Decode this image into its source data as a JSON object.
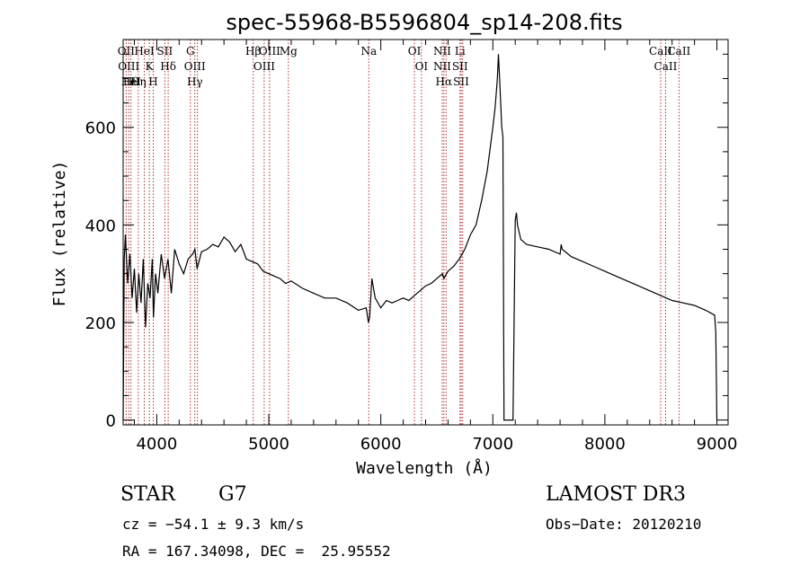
{
  "chart_data": {
    "type": "line",
    "title": "spec-55968-B5596804_sp14-208.fits",
    "xlabel": "Wavelength (Å)",
    "ylabel": "Flux (relative)",
    "xlim": [
      3700,
      9100
    ],
    "ylim": [
      -10,
      780
    ],
    "xticks": [
      4000,
      5000,
      6000,
      7000,
      8000,
      9000
    ],
    "xtick_labels": [
      "4000",
      "5000",
      "6000",
      "7000",
      "8000",
      "9000"
    ],
    "yticks": [
      0,
      200,
      400,
      600
    ],
    "ytick_labels": [
      "0",
      "200",
      "400",
      "600"
    ],
    "series": [
      {
        "name": "flux",
        "x": [
          3700,
          3710,
          3720,
          3740,
          3760,
          3780,
          3800,
          3820,
          3840,
          3860,
          3880,
          3900,
          3920,
          3940,
          3960,
          3970,
          3990,
          4010,
          4040,
          4070,
          4100,
          4130,
          4160,
          4200,
          4240,
          4280,
          4320,
          4340,
          4360,
          4400,
          4450,
          4500,
          4550,
          4600,
          4650,
          4700,
          4750,
          4800,
          4850,
          4900,
          4950,
          5000,
          5050,
          5100,
          5150,
          5200,
          5300,
          5400,
          5500,
          5600,
          5700,
          5800,
          5870,
          5890,
          5900,
          5920,
          5950,
          6000,
          6050,
          6100,
          6150,
          6200,
          6250,
          6300,
          6350,
          6400,
          6450,
          6500,
          6550,
          6563,
          6600,
          6650,
          6700,
          6750,
          6800,
          6850,
          6900,
          6950,
          7000,
          7020,
          7040,
          7050,
          7060,
          7070,
          7080,
          7090,
          7100,
          7150,
          7180,
          7200,
          7210,
          7220,
          7250,
          7300,
          7400,
          7500,
          7600,
          7610,
          7620,
          7700,
          7800,
          7900,
          8000,
          8100,
          8200,
          8300,
          8400,
          8500,
          8600,
          8700,
          8800,
          8900,
          8980,
          8990,
          9000
        ],
        "values": [
          0,
          330,
          380,
          280,
          340,
          250,
          310,
          220,
          300,
          240,
          330,
          190,
          280,
          250,
          330,
          210,
          300,
          260,
          340,
          290,
          330,
          260,
          350,
          320,
          300,
          330,
          340,
          350,
          310,
          345,
          350,
          360,
          355,
          375,
          365,
          345,
          360,
          330,
          325,
          320,
          305,
          300,
          295,
          290,
          280,
          285,
          270,
          260,
          250,
          250,
          240,
          225,
          230,
          200,
          210,
          290,
          250,
          230,
          245,
          240,
          245,
          250,
          245,
          255,
          265,
          275,
          280,
          290,
          300,
          290,
          305,
          315,
          330,
          350,
          380,
          400,
          450,
          510,
          600,
          640,
          700,
          750,
          700,
          650,
          600,
          580,
          0,
          0,
          0,
          410,
          425,
          400,
          370,
          360,
          355,
          350,
          340,
          360,
          350,
          335,
          325,
          315,
          305,
          295,
          285,
          275,
          265,
          255,
          245,
          240,
          235,
          225,
          215,
          180,
          0
        ]
      }
    ],
    "spectral_lines": [
      {
        "wavelength": 3727,
        "labels": [
          "OII"
        ]
      },
      {
        "wavelength": 3750,
        "labels": [
          "OIII"
        ]
      },
      {
        "wavelength": 3770,
        "labels": [
          "Hθ",
          "HeI"
        ]
      },
      {
        "wavelength": 3835,
        "labels": [
          "Hη"
        ]
      },
      {
        "wavelength": 3889,
        "labels": [
          "HeI"
        ]
      },
      {
        "wavelength": 3934,
        "labels": [
          "K"
        ]
      },
      {
        "wavelength": 3969,
        "labels": [
          "H"
        ]
      },
      {
        "wavelength": 4072,
        "labels": [
          "SII"
        ]
      },
      {
        "wavelength": 4102,
        "labels": [
          "Hδ"
        ]
      },
      {
        "wavelength": 4300,
        "labels": [
          "G"
        ]
      },
      {
        "wavelength": 4340,
        "labels": [
          "OIII",
          "Hγ"
        ]
      },
      {
        "wavelength": 4363,
        "labels": []
      },
      {
        "wavelength": 4861,
        "labels": [
          "Hβ"
        ]
      },
      {
        "wavelength": 4959,
        "labels": [
          "OIII"
        ]
      },
      {
        "wavelength": 5007,
        "labels": [
          "OIII"
        ]
      },
      {
        "wavelength": 5175,
        "labels": [
          "Mg"
        ]
      },
      {
        "wavelength": 5893,
        "labels": [
          "Na"
        ]
      },
      {
        "wavelength": 6300,
        "labels": [
          "OI"
        ]
      },
      {
        "wavelength": 6363,
        "labels": [
          "OI"
        ]
      },
      {
        "wavelength": 6548,
        "labels": [
          "NII",
          "NII"
        ]
      },
      {
        "wavelength": 6563,
        "labels": [
          "Hα"
        ]
      },
      {
        "wavelength": 6583,
        "labels": []
      },
      {
        "wavelength": 6707,
        "labels": [
          "Li",
          "SII"
        ]
      },
      {
        "wavelength": 6717,
        "labels": [
          "SII"
        ]
      },
      {
        "wavelength": 6731,
        "labels": []
      },
      {
        "wavelength": 8498,
        "labels": [
          "CaII"
        ]
      },
      {
        "wavelength": 8542,
        "labels": [
          "CaII"
        ]
      },
      {
        "wavelength": 8662,
        "labels": [
          "CaII"
        ]
      }
    ]
  },
  "info": {
    "object_class": "STAR",
    "subclass": "G7",
    "survey": "LAMOST DR3",
    "redshift": "cz = −54.1 ± 9.3 km/s",
    "obs_date": "Obs−Date: 20120210",
    "coords": "RA = 167.34098, DEC =  25.95552"
  }
}
